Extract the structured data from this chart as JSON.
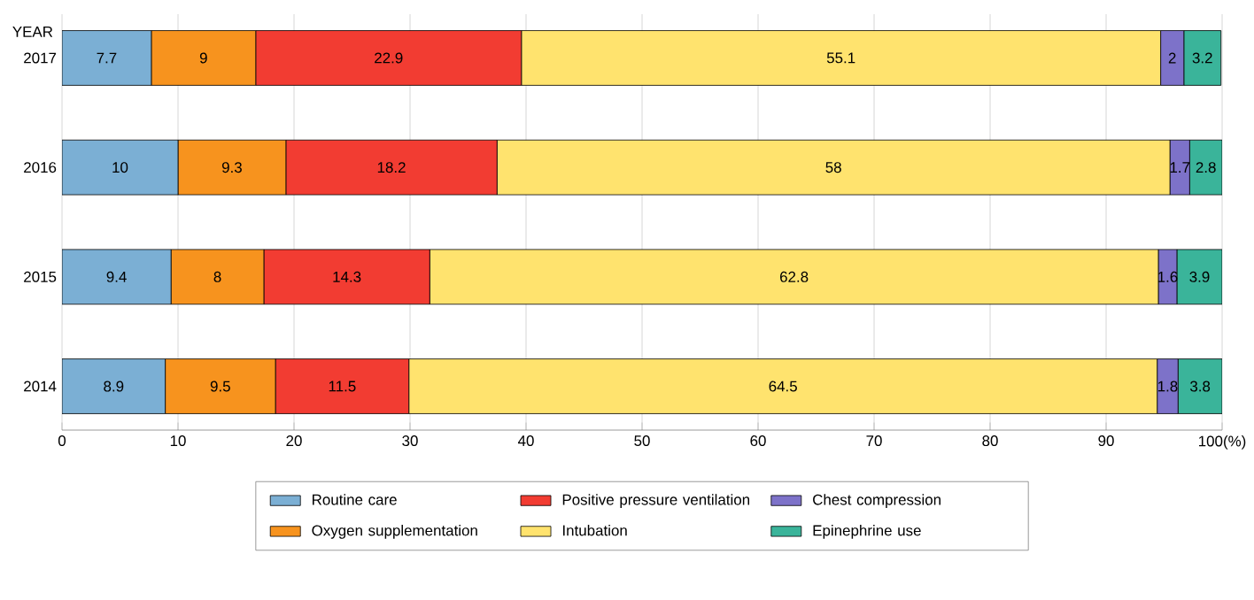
{
  "chart_data": {
    "type": "bar",
    "orientation": "horizontal",
    "stacked": true,
    "ylabel": "YEAR",
    "categories": [
      "2017",
      "2016",
      "2015",
      "2014"
    ],
    "series": [
      {
        "name": "Routine care",
        "color": "#7bafd4",
        "values": [
          7.7,
          10,
          9.4,
          8.9
        ]
      },
      {
        "name": "Oxygen supplementation",
        "color": "#f7931e",
        "values": [
          9,
          9.3,
          8,
          9.5
        ]
      },
      {
        "name": "Positive pressure ventilation",
        "color": "#f23c32",
        "values": [
          22.9,
          18.2,
          14.3,
          11.5
        ]
      },
      {
        "name": "Intubation",
        "color": "#ffe36e",
        "values": [
          55.1,
          58,
          62.8,
          64.5
        ]
      },
      {
        "name": "Chest compression",
        "color": "#7d72c9",
        "values": [
          2,
          1.7,
          1.6,
          1.8
        ]
      },
      {
        "name": "Epinephrine use",
        "color": "#3ab49a",
        "values": [
          3.2,
          2.8,
          3.9,
          3.8
        ]
      }
    ],
    "xlim": [
      0,
      100
    ],
    "xticks": [
      0,
      10,
      20,
      30,
      40,
      50,
      60,
      70,
      80,
      90,
      {
        "value": 100,
        "label": "100(%)"
      }
    ],
    "grid": "x",
    "legend": "bottom",
    "data_labels": true
  }
}
